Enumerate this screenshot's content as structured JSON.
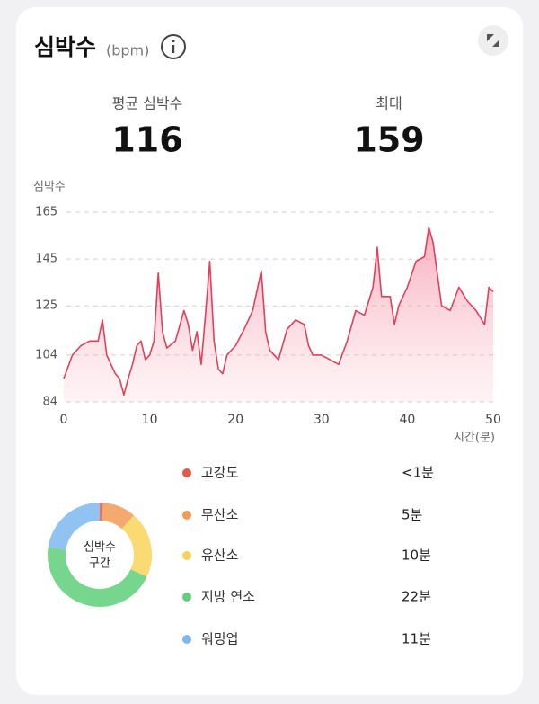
{
  "header": {
    "title": "심박수",
    "unit": "(bpm)"
  },
  "stats": [
    {
      "label": "평균 심박수",
      "value": 116
    },
    {
      "label": "최대",
      "value": 159
    }
  ],
  "chart_data": [
    {
      "type": "line",
      "y_label": "심박수",
      "x_label": "시간(분)",
      "color": "#e0405a",
      "x": [
        0,
        1,
        2,
        3,
        4,
        4.5,
        5,
        6,
        6.5,
        7,
        7.5,
        8,
        8.5,
        9,
        9.5,
        10,
        10.5,
        11,
        11.5,
        12,
        13,
        14,
        14.5,
        15,
        15.5,
        16,
        16.5,
        17,
        17.5,
        18,
        18.5,
        19,
        20,
        21,
        22,
        23,
        23.5,
        24,
        25,
        26,
        27,
        28,
        28.5,
        29,
        30,
        31,
        32,
        33,
        34,
        35,
        36,
        36.5,
        37,
        38,
        38.5,
        39,
        40,
        41,
        42,
        42.5,
        43,
        44,
        45,
        46,
        47,
        48,
        49,
        49.5,
        50
      ],
      "values": [
        94,
        104,
        108,
        110,
        110,
        119,
        104,
        96,
        94,
        87,
        94,
        100,
        108,
        110,
        102,
        104,
        110,
        139,
        114,
        107,
        110,
        123,
        117,
        106,
        114,
        100,
        121,
        144,
        110,
        98,
        96,
        104,
        108,
        115,
        123,
        140,
        114,
        106,
        102,
        115,
        119,
        117,
        108,
        104,
        104,
        102,
        100,
        110,
        123,
        121,
        133,
        150,
        129,
        129,
        117,
        125,
        133,
        144,
        146,
        158.5,
        152,
        125,
        123,
        133,
        127,
        123,
        117,
        133,
        131
      ],
      "ylim": [
        84,
        165
      ],
      "yticks": [
        84,
        104,
        125,
        145,
        165
      ],
      "xlim": [
        0,
        50
      ],
      "xticks": [
        0,
        10,
        20,
        30,
        40,
        50
      ],
      "grid": true
    },
    {
      "type": "pie",
      "center_label": [
        "심박수",
        "구간"
      ],
      "categories": [
        "고강도",
        "무산소",
        "유산소",
        "지방 연소",
        "워밍업"
      ],
      "values": [
        0.5,
        5,
        10,
        22,
        11
      ],
      "value_labels": [
        "<1분",
        "5분",
        "10분",
        "22분",
        "11분"
      ],
      "colors": [
        "#e8584a",
        "#f29a56",
        "#f8d35a",
        "#5fcf7a",
        "#7cb8f0"
      ]
    }
  ]
}
